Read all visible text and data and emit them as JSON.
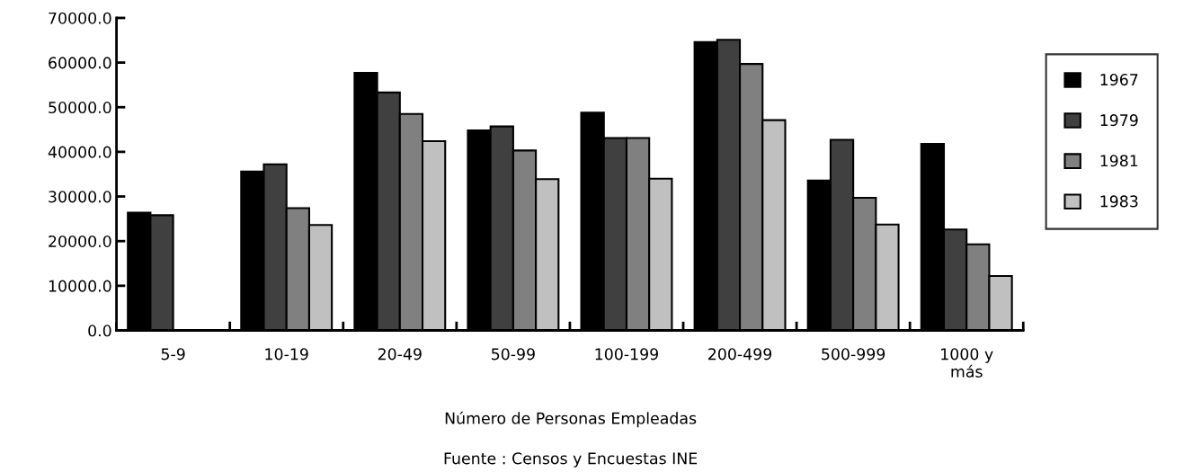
{
  "chart_data": {
    "type": "bar",
    "xlabel": "Número de Personas Empleadas",
    "annotations": [
      "Fuente : Censos y Encuestas INE"
    ],
    "categories": [
      "5-9",
      "10-19",
      "20-49",
      "50-99",
      "100-199",
      "200-499",
      "500-999",
      "1000 y\nmás"
    ],
    "series": [
      {
        "name": "1967",
        "color": "#000000",
        "values": [
          26400,
          35600,
          57700,
          44800,
          48800,
          64600,
          33600,
          41800
        ]
      },
      {
        "name": "1979",
        "color": "#404040",
        "values": [
          25800,
          37200,
          53300,
          45700,
          43100,
          65100,
          42700,
          22600
        ]
      },
      {
        "name": "1981",
        "color": "#808080",
        "values": [
          null,
          27400,
          48500,
          40300,
          43100,
          59700,
          29700,
          19300
        ]
      },
      {
        "name": "1983",
        "color": "#c0c0c0",
        "values": [
          null,
          23600,
          42400,
          33900,
          34000,
          47100,
          23700,
          12200
        ]
      }
    ],
    "ylim": [
      0,
      70000
    ],
    "yticks": [
      {
        "value": 0,
        "label": "0.0"
      },
      {
        "value": 10000,
        "label": "10000.0"
      },
      {
        "value": 20000,
        "label": "20000.0"
      },
      {
        "value": 30000,
        "label": "30000.0"
      },
      {
        "value": 40000,
        "label": "40000.0"
      },
      {
        "value": 50000,
        "label": "50000.0"
      },
      {
        "value": 60000,
        "label": "60000.0"
      },
      {
        "value": 70000,
        "label": "70000.0"
      }
    ],
    "grid": false,
    "legend": "right"
  }
}
